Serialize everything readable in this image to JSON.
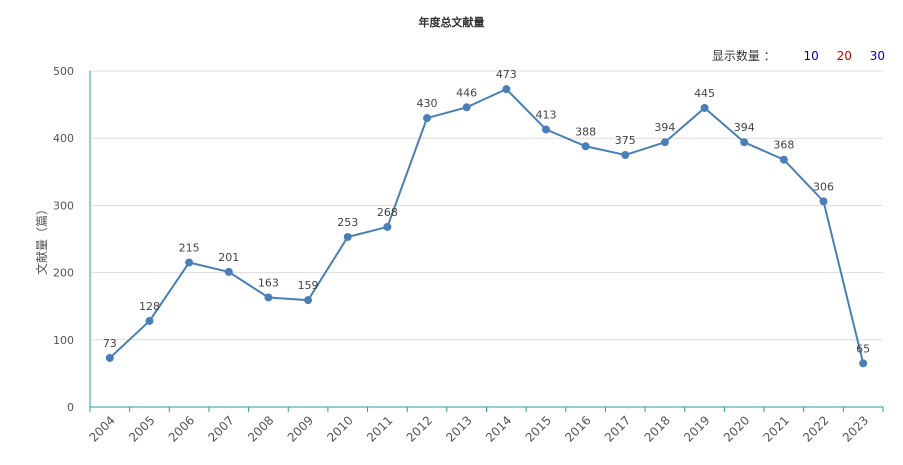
{
  "title": "年度总文献量",
  "display_count": {
    "label": "显示数量 ：",
    "options": [
      {
        "label": "10",
        "color": "#0000cc"
      },
      {
        "label": "20",
        "color": "#cc0000"
      },
      {
        "label": "30",
        "color": "#0000cc"
      }
    ]
  },
  "colors": {
    "line": "#4a7fb5",
    "axis": "#2b9aa0",
    "grid": "#dddddd",
    "text": "#555555"
  },
  "chart_data": {
    "type": "line",
    "title": "年度总文献量",
    "xlabel": "",
    "ylabel": "文献量（篇）",
    "ylim": [
      0,
      500
    ],
    "yticks": [
      "0",
      "100",
      "200",
      "300",
      "400",
      "500"
    ],
    "grid": true,
    "categories": [
      "2004",
      "2005",
      "2006",
      "2007",
      "2008",
      "2009",
      "2010",
      "2011",
      "2012",
      "2013",
      "2014",
      "2015",
      "2016",
      "2017",
      "2018",
      "2019",
      "2020",
      "2021",
      "2022",
      "2023"
    ],
    "series": [
      {
        "values": [
          73,
          128,
          215,
          201,
          163,
          159,
          253,
          268,
          430,
          446,
          473,
          413,
          388,
          375,
          394,
          445,
          394,
          368,
          306,
          65
        ],
        "labels": [
          "73",
          "128",
          "215",
          "201",
          "163",
          "159",
          "253",
          "268",
          "430",
          "446",
          "473",
          "413",
          "388",
          "375",
          "394",
          "445",
          "394",
          "368",
          "306",
          "65"
        ]
      }
    ]
  }
}
